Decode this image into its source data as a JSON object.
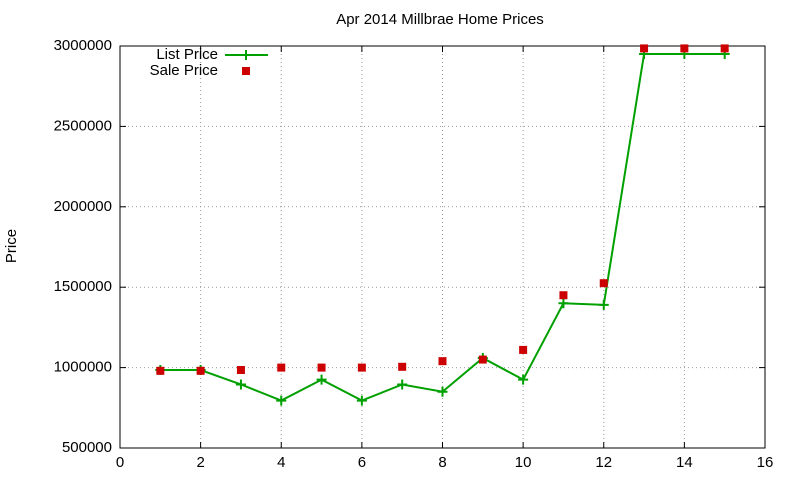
{
  "chart_data": {
    "type": "line",
    "title": "Apr 2014 Millbrae Home Prices",
    "y_label": "Price",
    "x": [
      1,
      2,
      3,
      4,
      5,
      6,
      7,
      8,
      9,
      10,
      11,
      12,
      13,
      14,
      15
    ],
    "series": [
      {
        "name": "List Price",
        "color": "#00a000",
        "style": "linespoints",
        "values": [
          985000,
          985000,
          895000,
          795000,
          925000,
          795000,
          895000,
          850000,
          1060000,
          925000,
          1400000,
          1390000,
          2950000,
          2950000,
          2950000
        ]
      },
      {
        "name": "Sale Price",
        "color": "#cc0000",
        "style": "points",
        "values": [
          980000,
          980000,
          985000,
          1000000,
          1000000,
          1000000,
          1005000,
          1040000,
          1050000,
          1110000,
          1450000,
          1525000,
          2985000,
          2985000,
          2985000
        ]
      }
    ],
    "xlim": [
      0,
      16
    ],
    "xticks": [
      0,
      2,
      4,
      6,
      8,
      10,
      12,
      14,
      16
    ],
    "ylim": [
      500000,
      3000000
    ],
    "yticks": [
      500000,
      1000000,
      1500000,
      2000000,
      2500000,
      3000000
    ],
    "grid": true,
    "legend": "top-left"
  }
}
